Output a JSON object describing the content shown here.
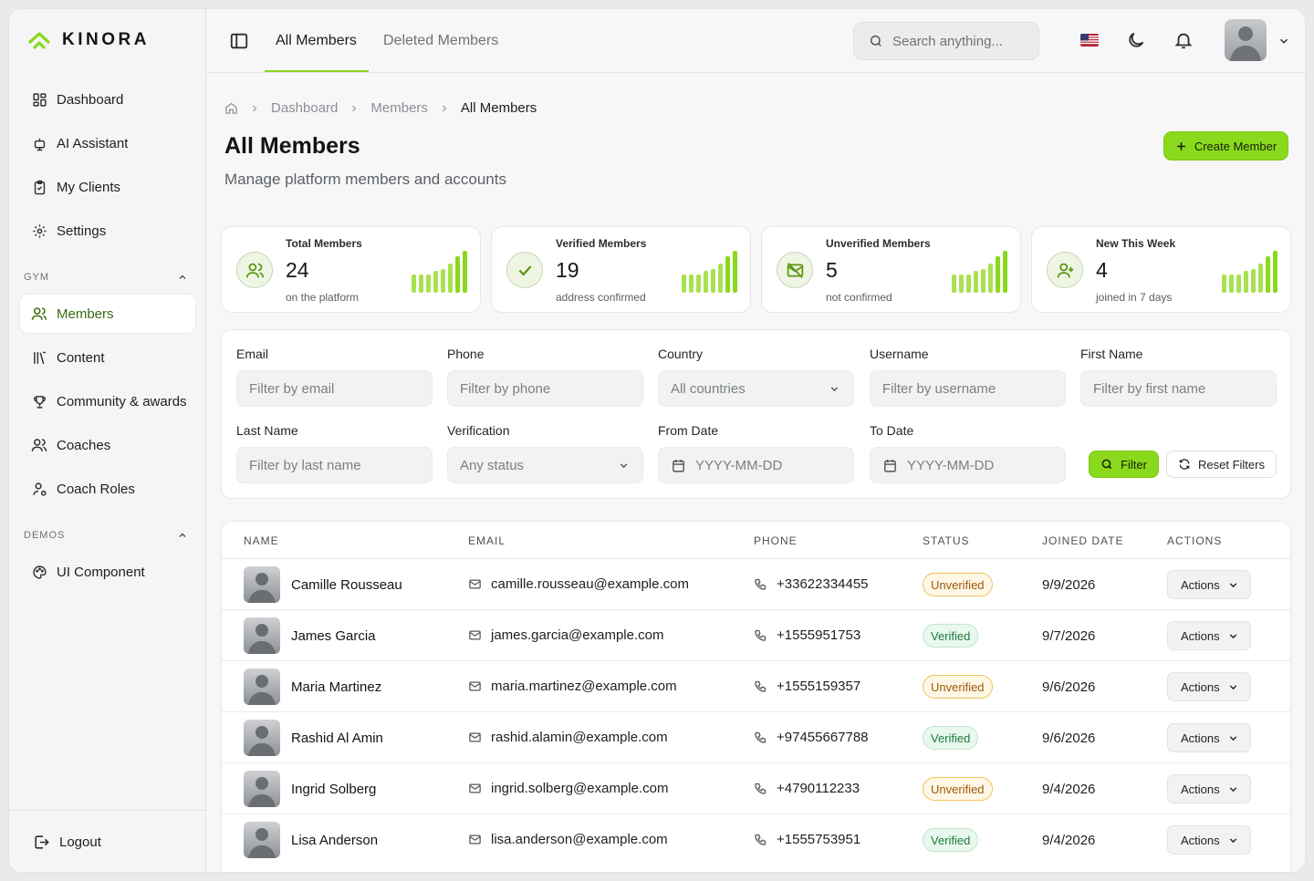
{
  "brand": {
    "name": "KINORA",
    "accent": "#8ad91c"
  },
  "sidebar": {
    "top_items": [
      {
        "label": "Dashboard",
        "icon": "dashboard-icon"
      },
      {
        "label": "AI Assistant",
        "icon": "robot-icon"
      },
      {
        "label": "My Clients",
        "icon": "clipboard-icon"
      },
      {
        "label": "Settings",
        "icon": "gear-icon"
      }
    ],
    "gym_section": "GYM",
    "gym_items": [
      {
        "label": "Members",
        "icon": "users-icon",
        "active": true
      },
      {
        "label": "Content",
        "icon": "library-icon"
      },
      {
        "label": "Community & awards",
        "icon": "trophy-icon"
      },
      {
        "label": "Coaches",
        "icon": "users-icon"
      },
      {
        "label": "Coach Roles",
        "icon": "user-cog-icon"
      }
    ],
    "demos_section": "DEMOS",
    "demos_items": [
      {
        "label": "UI Component",
        "icon": "palette-icon"
      }
    ],
    "logout": "Logout"
  },
  "topbar": {
    "tabs": [
      "All Members",
      "Deleted Members"
    ],
    "search_placeholder": "Search anything..."
  },
  "breadcrumb": [
    "Dashboard",
    "Members",
    "All Members"
  ],
  "page": {
    "title": "All Members",
    "subtitle": "Manage platform members and accounts",
    "create_button": "Create Member"
  },
  "stats": [
    {
      "label": "Total Members",
      "value": "24",
      "sub": "on the platform",
      "icon": "users-icon"
    },
    {
      "label": "Verified Members",
      "value": "19",
      "sub": "address confirmed",
      "icon": "check-icon"
    },
    {
      "label": "Unverified Members",
      "value": "5",
      "sub": "not confirmed",
      "icon": "mail-off-icon"
    },
    {
      "label": "New This Week",
      "value": "4",
      "sub": "joined in 7 days",
      "icon": "user-plus-icon"
    }
  ],
  "filters": {
    "email": {
      "label": "Email",
      "placeholder": "Filter by email"
    },
    "phone": {
      "label": "Phone",
      "placeholder": "Filter by phone"
    },
    "country": {
      "label": "Country",
      "value": "All countries"
    },
    "username": {
      "label": "Username",
      "placeholder": "Filter by username"
    },
    "first_name": {
      "label": "First Name",
      "placeholder": "Filter by first name"
    },
    "last_name": {
      "label": "Last Name",
      "placeholder": "Filter by last name"
    },
    "verification": {
      "label": "Verification",
      "value": "Any status"
    },
    "from_date": {
      "label": "From Date",
      "placeholder": "YYYY-MM-DD"
    },
    "to_date": {
      "label": "To Date",
      "placeholder": "YYYY-MM-DD"
    },
    "filter_button": "Filter",
    "reset_button": "Reset Filters"
  },
  "table": {
    "headers": [
      "NAME",
      "EMAIL",
      "PHONE",
      "STATUS",
      "JOINED DATE",
      "ACTIONS"
    ],
    "rows": [
      {
        "name": "Camille Rousseau",
        "email": "camille.rousseau@example.com",
        "phone": "+33622334455",
        "status": "Unverified",
        "date": "9/9/2026",
        "action": "Actions"
      },
      {
        "name": "James Garcia",
        "email": "james.garcia@example.com",
        "phone": "+1555951753",
        "status": "Verified",
        "date": "9/7/2026",
        "action": "Actions"
      },
      {
        "name": "Maria Martinez",
        "email": "maria.martinez@example.com",
        "phone": "+1555159357",
        "status": "Unverified",
        "date": "9/6/2026",
        "action": "Actions"
      },
      {
        "name": "Rashid Al Amin",
        "email": "rashid.alamin@example.com",
        "phone": "+97455667788",
        "status": "Verified",
        "date": "9/6/2026",
        "action": "Actions"
      },
      {
        "name": "Ingrid Solberg",
        "email": "ingrid.solberg@example.com",
        "phone": "+4790112233",
        "status": "Unverified",
        "date": "9/4/2026",
        "action": "Actions"
      },
      {
        "name": "Lisa Anderson",
        "email": "lisa.anderson@example.com",
        "phone": "+1555753951",
        "status": "Verified",
        "date": "9/4/2026",
        "action": "Actions"
      }
    ]
  }
}
